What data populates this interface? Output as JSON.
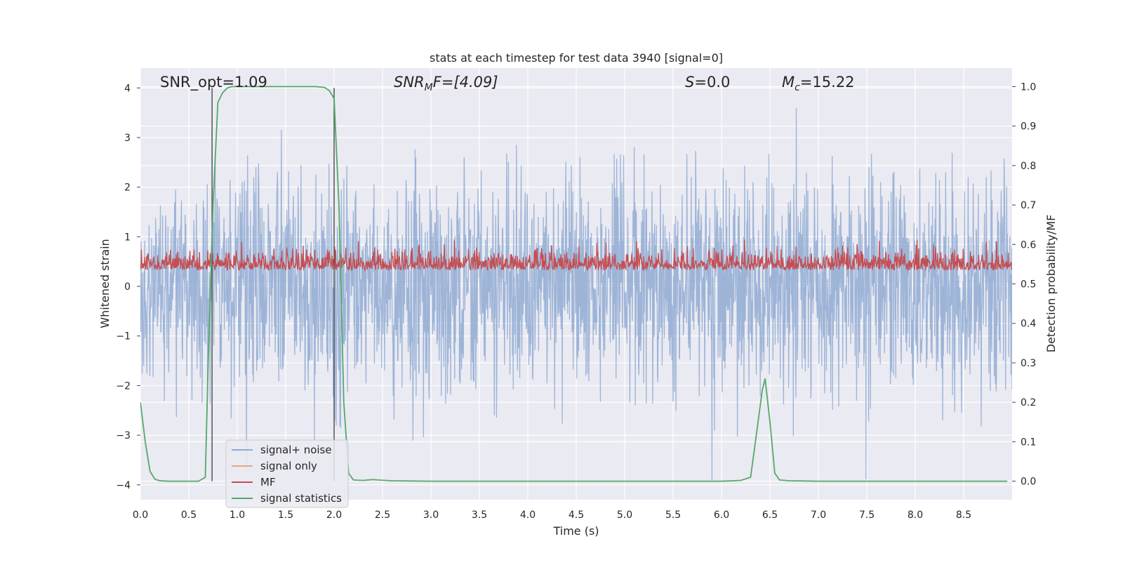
{
  "chart_data": {
    "type": "line",
    "title": "stats at each timestep for test data 3940 [signal=0]",
    "xlabel": "Time (s)",
    "ylabel_left": "Whitened strain",
    "ylabel_right": "Detection probability/MF",
    "xlim": [
      0,
      9.0
    ],
    "ylim_left": [
      -4.3,
      4.4
    ],
    "ylim_right": [
      -0.047,
      1.047
    ],
    "x_ticks": [
      "0.0",
      "0.5",
      "1.0",
      "1.5",
      "2.0",
      "2.5",
      "3.0",
      "3.5",
      "4.0",
      "4.5",
      "5.0",
      "5.5",
      "6.0",
      "6.5",
      "7.0",
      "7.5",
      "8.0",
      "8.5"
    ],
    "y_ticks_left": [
      "4",
      "3",
      "2",
      "1",
      "0",
      "−1",
      "−2",
      "−3",
      "−4"
    ],
    "y_ticks_right": [
      "1.0",
      "0.9",
      "0.8",
      "0.7",
      "0.6",
      "0.5",
      "0.4",
      "0.3",
      "0.2",
      "0.1",
      "0.0"
    ],
    "annotations": {
      "snr_opt": "SNR_opt=1.09",
      "snr_mf_main": "SNR",
      "snr_mf_sub": "M",
      "snr_mf_rest": "F=[4.09]",
      "s_main": "S",
      "s_rest": "=0.0",
      "mc_main": "M",
      "mc_sub": "c",
      "mc_rest": "=15.22"
    },
    "vlines_x": [
      0.74,
      2.0
    ],
    "legend": {
      "position": "lower-left",
      "entries": [
        "signal+ noise",
        "signal only",
        "MF",
        "signal statistics"
      ]
    },
    "colors": {
      "signal_noise": "#8faad2",
      "signal_only": "#e8a87c",
      "mf": "#c44e52",
      "signal_statistics": "#55a868",
      "vline": "#555555",
      "axes_bg": "#eaeaf2",
      "grid": "#ffffff"
    },
    "series": [
      {
        "name": "signal+ noise",
        "axis": "left",
        "summary": "noise band, typical ±1.5, spikes to about ±3.6"
      },
      {
        "name": "signal only",
        "axis": "left",
        "values": []
      },
      {
        "name": "MF",
        "axis": "right",
        "summary": "noisy band between 0.50 and 0.61"
      },
      {
        "name": "signal statistics",
        "axis": "right",
        "x": [
          0.0,
          0.05,
          0.1,
          0.15,
          0.2,
          0.3,
          0.4,
          0.5,
          0.6,
          0.67,
          0.7,
          0.75,
          0.8,
          0.85,
          0.9,
          0.95,
          1.0,
          1.2,
          1.4,
          1.6,
          1.8,
          1.9,
          1.95,
          2.0,
          2.05,
          2.1,
          2.15,
          2.2,
          2.3,
          2.4,
          2.45,
          2.6,
          3.0,
          3.5,
          4.0,
          4.5,
          5.0,
          5.5,
          6.0,
          6.2,
          6.3,
          6.35,
          6.42,
          6.45,
          6.5,
          6.55,
          6.6,
          6.7,
          7.0,
          7.5,
          8.0,
          8.5,
          8.95
        ],
        "values": [
          0.2,
          0.1,
          0.025,
          0.005,
          0.001,
          0.0,
          0.0,
          0.0,
          0.0,
          0.01,
          0.3,
          0.7,
          0.96,
          0.985,
          0.997,
          1.0,
          1.0,
          1.0,
          1.0,
          1.0,
          1.0,
          0.998,
          0.99,
          0.97,
          0.7,
          0.2,
          0.02,
          0.003,
          0.002,
          0.004,
          0.003,
          0.001,
          0.0,
          0.0,
          0.0,
          0.0,
          0.0,
          0.0,
          0.0,
          0.002,
          0.01,
          0.1,
          0.23,
          0.26,
          0.15,
          0.02,
          0.003,
          0.001,
          0.0,
          0.0,
          0.0,
          0.0,
          0.0
        ]
      }
    ]
  }
}
